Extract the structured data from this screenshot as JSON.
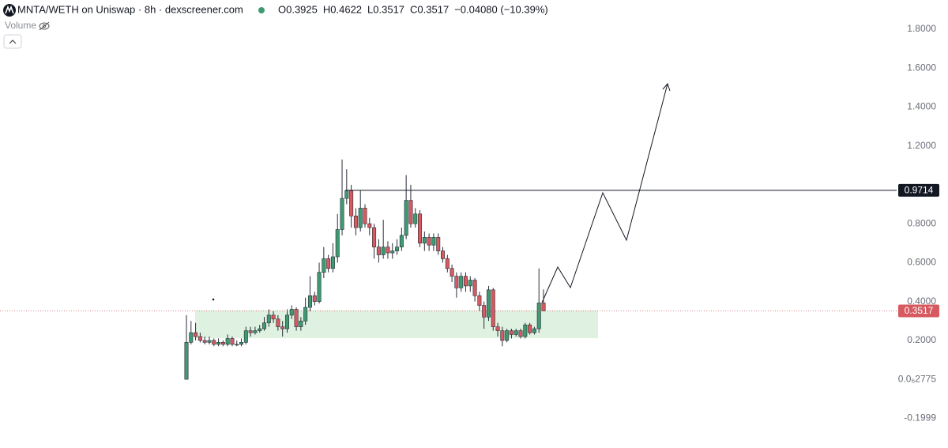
{
  "chart_data": {
    "type": "candlestick",
    "title": "MNTA/WETH on Uniswap · 8h · dexscreener.com",
    "ohlc_legend": [
      {
        "value": 0.3925,
        "label": "O0.3925"
      },
      {
        "value": 0.4622,
        "label": "H0.4622"
      },
      {
        "value": 0.3517,
        "label": "L0.3517"
      },
      {
        "value": 0.3517,
        "label": "C0.3517"
      }
    ],
    "change_label": "−0.04080 (−10.39%)",
    "volume_label": "Volume",
    "up_color": "#3f9a72",
    "down_color": "#d65a5f",
    "open": [
      0.0,
      0.19,
      0.24,
      0.22,
      0.2,
      0.19,
      0.2,
      0.18,
      0.19,
      0.18,
      0.21,
      0.18,
      0.18,
      0.19,
      0.25,
      0.24,
      0.25,
      0.26,
      0.29,
      0.33,
      0.31,
      0.27,
      0.26,
      0.33,
      0.36,
      0.27,
      0.3,
      0.37,
      0.43,
      0.4,
      0.55,
      0.62,
      0.57,
      0.63,
      0.77,
      0.93,
      0.97,
      0.84,
      0.78,
      0.88,
      0.8,
      0.78,
      0.68,
      0.64,
      0.68,
      0.65,
      0.66,
      0.68,
      0.74,
      0.92,
      0.8,
      0.85,
      0.7,
      0.73,
      0.69,
      0.73,
      0.66,
      0.62,
      0.57,
      0.53,
      0.47,
      0.53,
      0.48,
      0.51,
      0.43,
      0.38,
      0.32,
      0.46,
      0.27,
      0.25,
      0.2,
      0.25,
      0.23,
      0.25,
      0.22,
      0.28,
      0.24,
      0.26,
      0.3925
    ],
    "high": [
      0.33,
      0.3,
      0.29,
      0.24,
      0.22,
      0.22,
      0.21,
      0.21,
      0.2,
      0.23,
      0.22,
      0.2,
      0.21,
      0.27,
      0.27,
      0.27,
      0.28,
      0.32,
      0.36,
      0.35,
      0.33,
      0.3,
      0.36,
      0.38,
      0.37,
      0.32,
      0.42,
      0.53,
      0.45,
      0.6,
      0.68,
      0.64,
      0.7,
      0.85,
      1.13,
      1.08,
      1.0,
      0.88,
      0.97,
      0.9,
      0.83,
      0.8,
      0.72,
      0.82,
      0.71,
      0.7,
      0.72,
      0.78,
      1.05,
      1.0,
      0.88,
      0.87,
      0.76,
      0.75,
      0.75,
      0.75,
      0.68,
      0.64,
      0.59,
      0.55,
      0.55,
      0.55,
      0.53,
      0.52,
      0.45,
      0.4,
      0.48,
      0.47,
      0.29,
      0.27,
      0.26,
      0.26,
      0.26,
      0.26,
      0.29,
      0.29,
      0.27,
      0.57,
      0.4622
    ],
    "low": [
      0.0,
      0.18,
      0.2,
      0.19,
      0.18,
      0.18,
      0.17,
      0.17,
      0.17,
      0.17,
      0.17,
      0.17,
      0.17,
      0.18,
      0.22,
      0.23,
      0.24,
      0.25,
      0.27,
      0.29,
      0.25,
      0.22,
      0.24,
      0.31,
      0.25,
      0.25,
      0.28,
      0.35,
      0.38,
      0.39,
      0.52,
      0.55,
      0.55,
      0.6,
      0.74,
      0.9,
      0.78,
      0.74,
      0.76,
      0.78,
      0.74,
      0.62,
      0.6,
      0.62,
      0.62,
      0.62,
      0.64,
      0.66,
      0.72,
      0.78,
      0.78,
      0.68,
      0.66,
      0.66,
      0.66,
      0.64,
      0.6,
      0.55,
      0.5,
      0.42,
      0.45,
      0.45,
      0.45,
      0.4,
      0.35,
      0.26,
      0.3,
      0.25,
      0.22,
      0.17,
      0.19,
      0.21,
      0.22,
      0.21,
      0.21,
      0.23,
      0.23,
      0.24,
      0.3517
    ],
    "close": [
      0.19,
      0.24,
      0.22,
      0.2,
      0.19,
      0.2,
      0.18,
      0.19,
      0.18,
      0.21,
      0.18,
      0.18,
      0.19,
      0.25,
      0.24,
      0.25,
      0.26,
      0.29,
      0.33,
      0.31,
      0.27,
      0.26,
      0.33,
      0.36,
      0.27,
      0.3,
      0.37,
      0.43,
      0.4,
      0.55,
      0.62,
      0.57,
      0.63,
      0.77,
      0.93,
      0.97,
      0.84,
      0.78,
      0.88,
      0.8,
      0.78,
      0.68,
      0.64,
      0.68,
      0.65,
      0.66,
      0.68,
      0.74,
      0.92,
      0.8,
      0.85,
      0.7,
      0.73,
      0.69,
      0.73,
      0.66,
      0.62,
      0.57,
      0.53,
      0.47,
      0.53,
      0.48,
      0.51,
      0.43,
      0.38,
      0.32,
      0.46,
      0.27,
      0.25,
      0.2,
      0.25,
      0.23,
      0.25,
      0.22,
      0.28,
      0.24,
      0.26,
      0.3925,
      0.3517
    ],
    "ylim": [
      -0.353,
      1.95
    ],
    "yticks": [
      {
        "value": 1.8,
        "label": "1.8000"
      },
      {
        "value": 1.6,
        "label": "1.6000"
      },
      {
        "value": 1.4,
        "label": "1.4000"
      },
      {
        "value": 1.2,
        "label": "1.2000"
      },
      {
        "value": 0.8,
        "label": "0.8000"
      },
      {
        "value": 0.6,
        "label": "0.6000"
      },
      {
        "value": 0.4,
        "label": "0.4000"
      },
      {
        "value": 0.2,
        "label": "0.2000"
      },
      {
        "value": 2.775e-07,
        "label": "0.0₆2775"
      },
      {
        "value": -0.1999,
        "label": "-0.1999"
      }
    ],
    "price_lines": [
      {
        "value": 0.9714,
        "color": "#131722",
        "style": "solid"
      },
      {
        "value": 0.3517,
        "color": "#d65a5f",
        "style": "dotted"
      }
    ]
  }
}
